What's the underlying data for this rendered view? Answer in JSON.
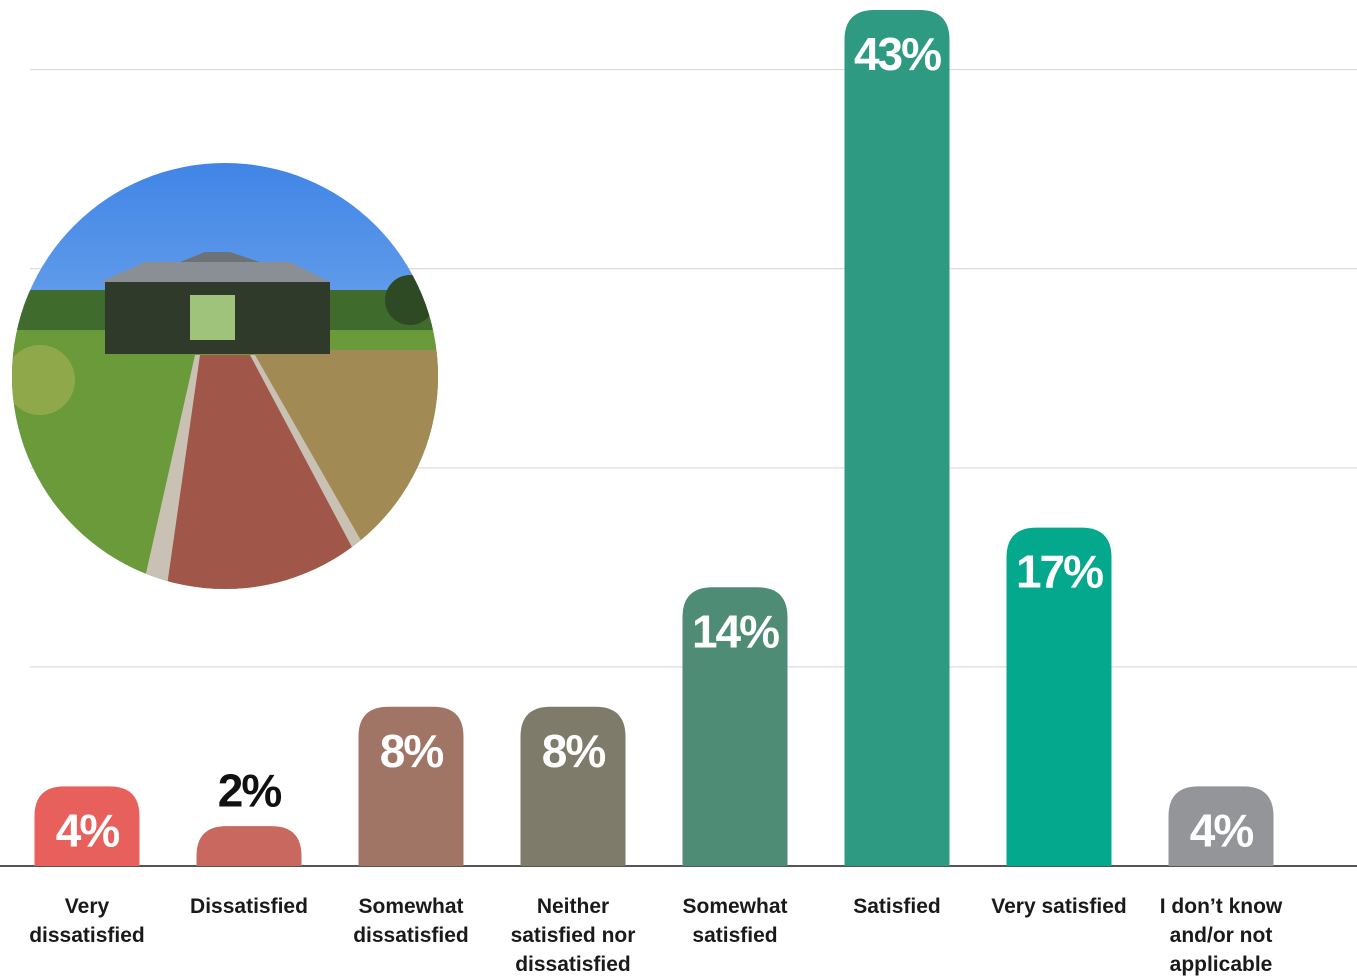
{
  "chart_data": {
    "type": "bar",
    "categories": [
      "Very dissatisfied",
      "Dissatisfied",
      "Somewhat dissatisfied",
      "Neither satisfied nor dissatisfied",
      "Somewhat satisfied",
      "Satisfied",
      "Very satisfied",
      "I don’t know and/or not applicable"
    ],
    "values": [
      4,
      2,
      8,
      8,
      14,
      43,
      17,
      4
    ],
    "value_labels": [
      "4%",
      "2%",
      "8%",
      "8%",
      "14%",
      "43%",
      "17%",
      "4%"
    ],
    "colors": [
      "#e8605c",
      "#c9685f",
      "#a07566",
      "#7e7b6a",
      "#4f8c76",
      "#2e9a82",
      "#04a88c",
      "#939598"
    ],
    "ylim": [
      0,
      43.5
    ],
    "yticks": [
      10,
      20,
      30,
      40
    ],
    "grid": true
  }
}
